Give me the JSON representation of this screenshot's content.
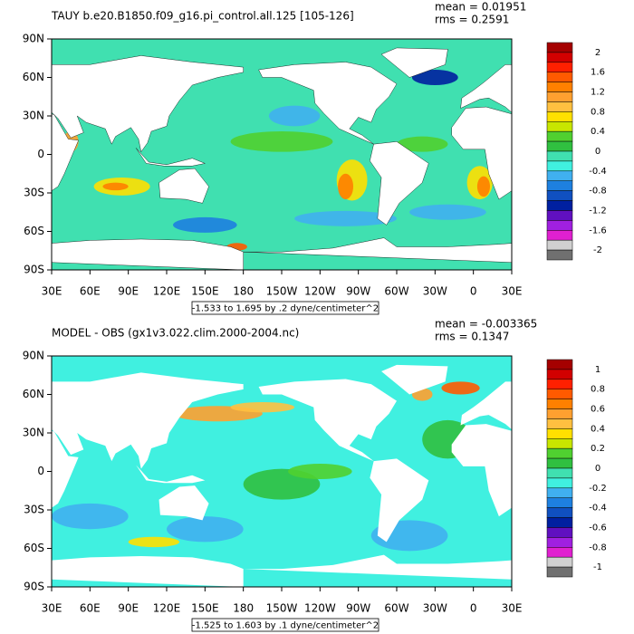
{
  "panels": [
    {
      "title": "TAUY b.e20.B1850.f09_g16.pi_control.all.125 [105-126]",
      "mean": "mean = 0.01951",
      "rms": "rms = 0.2591",
      "yticks": [
        "90N",
        "60N",
        "30N",
        "0",
        "30S",
        "60S",
        "90S"
      ],
      "xticks": [
        "30E",
        "60E",
        "90E",
        "120E",
        "150E",
        "180",
        "150W",
        "120W",
        "90W",
        "60W",
        "30W",
        "0",
        "30E"
      ],
      "range_note": "-1.533 to 1.695 by .2 dyne/centimeter^2",
      "colorbar": {
        "labels": [
          "2",
          "1.6",
          "1.2",
          "0.8",
          "0.4",
          "0",
          "-0.4",
          "-0.8",
          "-1.2",
          "-1.6",
          "-2"
        ],
        "colors": [
          "#a50000",
          "#d20000",
          "#ff2000",
          "#ff5a00",
          "#ff8000",
          "#ffa030",
          "#ffc040",
          "#ffe000",
          "#c8e600",
          "#50d030",
          "#30c040",
          "#40e0b0",
          "#40f0e0",
          "#40b0f0",
          "#1e80e0",
          "#1050c0",
          "#0020a0",
          "#6010c0",
          "#a020e0",
          "#e020d0",
          "#d0d0d0",
          "#707070"
        ]
      }
    },
    {
      "title": "MODEL - OBS (gx1v3.022.clim.2000-2004.nc)",
      "mean": "mean = -0.003365",
      "rms": "rms = 0.1347",
      "yticks": [
        "90N",
        "60N",
        "30N",
        "0",
        "30S",
        "60S",
        "90S"
      ],
      "xticks": [
        "30E",
        "60E",
        "90E",
        "120E",
        "150E",
        "180",
        "150W",
        "120W",
        "90W",
        "60W",
        "30W",
        "0",
        "30E"
      ],
      "range_note": "-1.525 to 1.603 by .1 dyne/centimeter^2",
      "colorbar": {
        "labels": [
          "1",
          "0.8",
          "0.6",
          "0.4",
          "0.2",
          "0",
          "-0.2",
          "-0.4",
          "-0.6",
          "-0.8",
          "-1"
        ],
        "colors": [
          "#a50000",
          "#d20000",
          "#ff2000",
          "#ff5a00",
          "#ff8000",
          "#ffa030",
          "#ffc040",
          "#ffe000",
          "#c8e600",
          "#50d030",
          "#30c040",
          "#40e0b0",
          "#40f0e0",
          "#40b0f0",
          "#1e80e0",
          "#1050c0",
          "#0020a0",
          "#6010c0",
          "#a020e0",
          "#e020d0",
          "#d0d0d0",
          "#707070"
        ]
      }
    }
  ]
}
